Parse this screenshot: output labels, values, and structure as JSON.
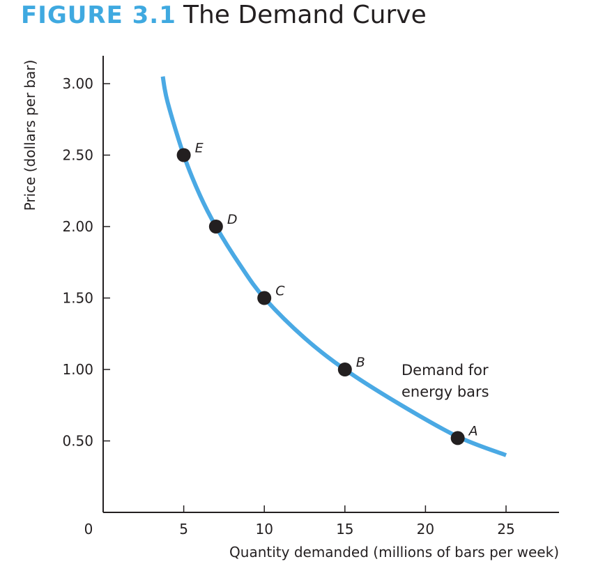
{
  "figure": {
    "label": "FIGURE 3.1",
    "title": "The Demand Curve"
  },
  "chart_data": {
    "type": "line",
    "title": "The Demand Curve",
    "xlabel": "Quantity demanded (millions of bars per week)",
    "ylabel": "Price (dollars per bar)",
    "xlim": [
      0,
      25
    ],
    "ylim": [
      0,
      3.0
    ],
    "origin_label": "0",
    "x_ticks": [
      5,
      10,
      15,
      20,
      25
    ],
    "x_tick_labels": [
      "5",
      "10",
      "15",
      "20",
      "25"
    ],
    "y_ticks": [
      0.5,
      1.0,
      1.5,
      2.0,
      2.5,
      3.0
    ],
    "y_tick_labels": [
      "0.50",
      "1.00",
      "1.50",
      "2.00",
      "2.50",
      "3.00"
    ],
    "grid": false,
    "curve_color": "#4aa9e4",
    "series": [
      {
        "name": "Demand for energy bars",
        "name_lines": [
          "Demand for",
          "energy bars"
        ],
        "x": [
          3.7,
          4.0,
          5.0,
          6.0,
          7.0,
          8.5,
          10.0,
          12.5,
          15.0,
          18.5,
          22.0,
          25.0
        ],
        "y": [
          3.05,
          2.87,
          2.5,
          2.22,
          2.0,
          1.73,
          1.5,
          1.22,
          1.0,
          0.75,
          0.53,
          0.4
        ]
      }
    ],
    "points": [
      {
        "label": "A",
        "x": 22.0,
        "y": 0.52
      },
      {
        "label": "B",
        "x": 15.0,
        "y": 1.0
      },
      {
        "label": "C",
        "x": 10.0,
        "y": 1.5
      },
      {
        "label": "D",
        "x": 7.0,
        "y": 2.0
      },
      {
        "label": "E",
        "x": 5.0,
        "y": 2.5
      }
    ]
  }
}
